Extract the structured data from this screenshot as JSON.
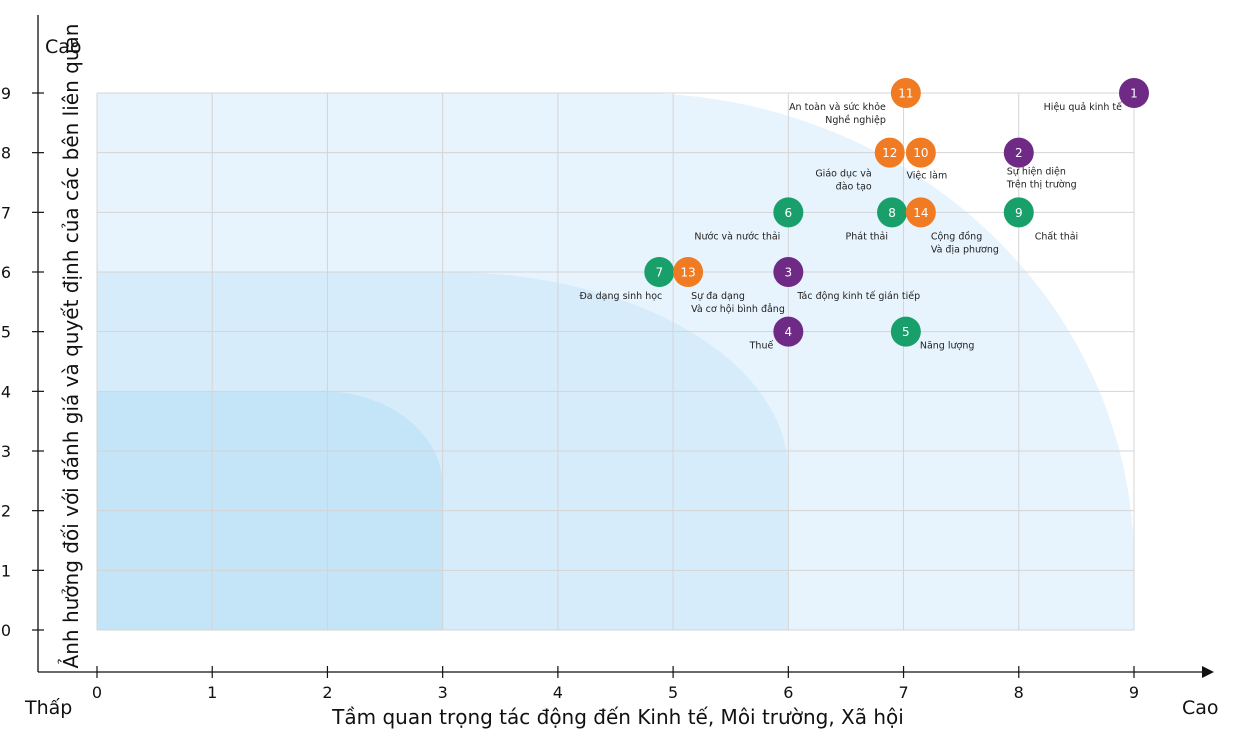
{
  "chart_data": {
    "type": "scatter",
    "xlabel": "Tầm quan trọng tác động đến Kinh tế, Môi trường, Xã hội",
    "ylabel": "Ảnh hưởng đối với đánh giá và quyết định của các bên liên quan",
    "xlim": [
      0,
      9
    ],
    "ylim": [
      0,
      9
    ],
    "x_ticks": [
      "0",
      "1",
      "2",
      "3",
      "4",
      "5",
      "6",
      "7",
      "8",
      "9"
    ],
    "y_ticks": [
      "0",
      "1",
      "2",
      "3",
      "4",
      "5",
      "6",
      "7",
      "8",
      "9"
    ],
    "x_low_label": "Thấp",
    "x_high_label": "Cao",
    "y_high_label": "Cao",
    "grid": true,
    "zones": [
      {
        "x_max": 9,
        "y_max": 9,
        "color": "#e8f4fd"
      },
      {
        "x_max": 6,
        "y_max": 6,
        "color": "#d7ecfa"
      },
      {
        "x_max": 3,
        "y_max": 4,
        "color": "#c4e4f7"
      }
    ],
    "colors": {
      "purple": "#6e2a84",
      "orange": "#f07b22",
      "green": "#19a06a"
    },
    "points": [
      {
        "id": "1",
        "x": 9.0,
        "y": 9,
        "color": "purple",
        "label": [
          "Hiệu quả kinh tế"
        ],
        "anchor": "end",
        "dx": -12,
        "dy": 17
      },
      {
        "id": "2",
        "x": 8.0,
        "y": 8,
        "color": "purple",
        "label": [
          "Sự hiện diện",
          "Trên thị trường"
        ],
        "anchor": "start",
        "dx": -12,
        "dy": 22
      },
      {
        "id": "3",
        "x": 6.0,
        "y": 6,
        "color": "purple",
        "label": [
          "Tác động kinh tế gián tiếp"
        ],
        "anchor": "start",
        "dx": 9,
        "dy": 27
      },
      {
        "id": "4",
        "x": 6.0,
        "y": 5,
        "color": "purple",
        "label": [
          "Thuế"
        ],
        "anchor": "end",
        "dx": -15,
        "dy": 17
      },
      {
        "id": "5",
        "x": 7.02,
        "y": 5,
        "color": "green",
        "label": [
          "Năng lượng"
        ],
        "anchor": "start",
        "dx": 14,
        "dy": 17
      },
      {
        "id": "6",
        "x": 6.0,
        "y": 7,
        "color": "green",
        "label": [
          "Nước và nước thải"
        ],
        "anchor": "end",
        "dx": -8,
        "dy": 27
      },
      {
        "id": "7",
        "x": 4.88,
        "y": 6,
        "color": "green",
        "label": [
          "Đa dạng sinh học"
        ],
        "anchor": "end",
        "dx": 3,
        "dy": 27
      },
      {
        "id": "8",
        "x": 6.9,
        "y": 7,
        "color": "green",
        "label": [
          "Phát thải"
        ],
        "anchor": "end",
        "dx": -4,
        "dy": 27
      },
      {
        "id": "9",
        "x": 8.0,
        "y": 7,
        "color": "green",
        "label": [
          "Chất thải"
        ],
        "anchor": "start",
        "dx": 16,
        "dy": 27
      },
      {
        "id": "10",
        "x": 7.15,
        "y": 8,
        "color": "orange",
        "label": [
          "Việc làm"
        ],
        "anchor": "middle",
        "dx": 6,
        "dy": 26
      },
      {
        "id": "11",
        "x": 7.02,
        "y": 9,
        "color": "orange",
        "label": [
          "An toàn và sức khỏe",
          "Nghề nghiệp"
        ],
        "anchor": "end",
        "dx": -20,
        "dy": 17
      },
      {
        "id": "12",
        "x": 6.88,
        "y": 8,
        "color": "orange",
        "label": [
          "Giáo dục và",
          "đào tạo"
        ],
        "anchor": "end",
        "dx": -18,
        "dy": 24
      },
      {
        "id": "13",
        "x": 5.13,
        "y": 6,
        "color": "orange",
        "label": [
          "Sự đa dạng",
          "Và cơ hội bình đẳng"
        ],
        "anchor": "start",
        "dx": 3,
        "dy": 27
      },
      {
        "id": "14",
        "x": 7.15,
        "y": 7,
        "color": "orange",
        "label": [
          "Cộng đồng",
          "Và địa phương"
        ],
        "anchor": "start",
        "dx": 10,
        "dy": 27
      }
    ]
  }
}
